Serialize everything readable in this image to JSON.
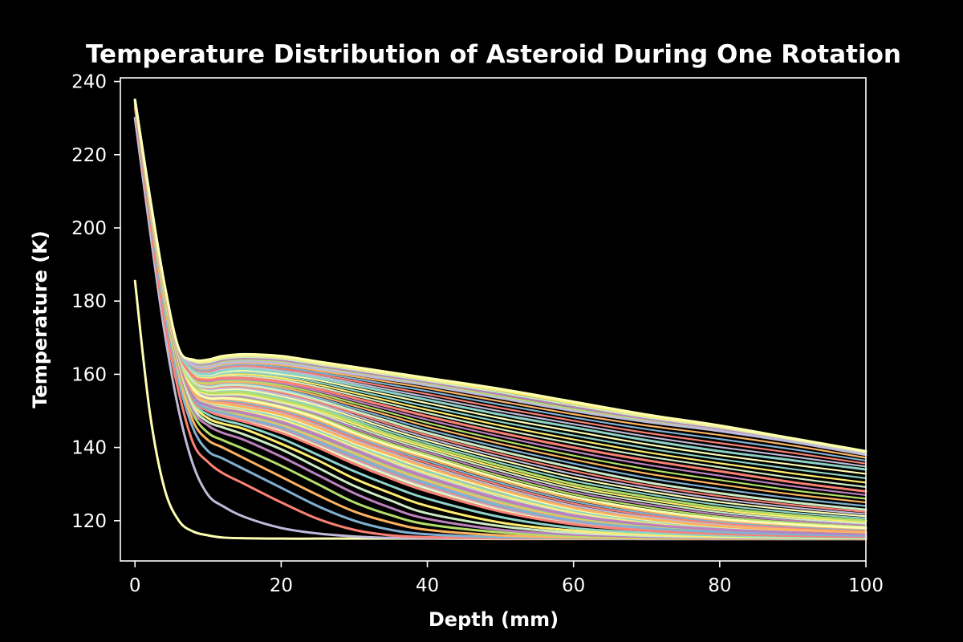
{
  "chart_data": {
    "type": "line",
    "title": "Temperature Distribution of Asteroid During One Rotation",
    "xlabel": "Depth (mm)",
    "ylabel": "Temperature (K)",
    "xlim": [
      -2,
      100
    ],
    "ylim": [
      109,
      241
    ],
    "xticks": [
      0,
      20,
      40,
      60,
      80,
      100
    ],
    "yticks": [
      120,
      140,
      160,
      180,
      200,
      220,
      240
    ],
    "grid": false,
    "legend": "none",
    "palette": [
      "#8dd3c7",
      "#feffb3",
      "#bfbbd9",
      "#fa8174",
      "#81b1d2",
      "#fdb462",
      "#b3de69",
      "#bc82bd",
      "#ccebc4",
      "#ffed6f"
    ],
    "series_x": [
      0,
      2,
      4,
      6,
      8,
      10,
      12,
      15,
      20,
      25,
      30,
      35,
      40,
      50,
      60,
      70,
      80,
      90,
      100
    ],
    "series": [
      {
        "color": "#feffb3",
        "values": [
          185.5,
          150,
          129,
          120,
          117,
          116,
          115.4,
          115.2,
          115.1,
          115.1,
          115.1,
          115.1,
          115.1,
          115,
          115,
          115,
          115,
          115,
          115
        ]
      },
      {
        "color": "#bfbbd9",
        "values": [
          230,
          200,
          172,
          150,
          135,
          127,
          124,
          121,
          118,
          116.5,
          115.7,
          115.3,
          115.2,
          115.1,
          115.1,
          115,
          115,
          115,
          115
        ]
      },
      {
        "color": "#fa8174",
        "values": [
          233,
          203,
          175,
          155,
          141,
          136,
          133,
          130,
          125,
          120.5,
          117.5,
          116,
          115.5,
          115.2,
          115.1,
          115.1,
          115,
          115,
          115
        ]
      },
      {
        "color": "#81b1d2",
        "values": [
          234,
          205,
          178,
          158,
          145,
          139,
          137,
          134,
          129,
          124,
          120,
          117.5,
          116.3,
          115.5,
          115.2,
          115.1,
          115.1,
          115,
          115
        ]
      },
      {
        "color": "#fdb462",
        "values": [
          234.5,
          206,
          180,
          160,
          147,
          142,
          140,
          137,
          132,
          127,
          122.5,
          119.5,
          117.5,
          116,
          115.4,
          115.2,
          115.1,
          115.1,
          115
        ]
      },
      {
        "color": "#b3de69",
        "values": [
          235,
          207,
          181,
          161,
          149,
          144,
          142,
          139.5,
          135,
          130,
          125,
          121.5,
          119,
          116.8,
          115.8,
          115.4,
          115.2,
          115.1,
          115.1
        ]
      },
      {
        "color": "#bc82bd",
        "values": [
          235,
          207.5,
          182,
          162,
          150,
          146,
          144,
          142,
          137.5,
          132.5,
          127.5,
          123.5,
          120.5,
          117.5,
          116.2,
          115.6,
          115.3,
          115.2,
          115.1
        ]
      },
      {
        "color": "#ccebc4",
        "values": [
          235,
          208,
          182.5,
          163,
          151,
          147,
          145.5,
          143.5,
          139.5,
          134.5,
          129.5,
          125.5,
          122,
          118.5,
          116.7,
          115.9,
          115.5,
          115.3,
          115.2
        ]
      },
      {
        "color": "#ffed6f",
        "values": [
          235,
          208,
          183,
          163.5,
          152,
          148,
          146.5,
          145,
          141,
          136.5,
          131.5,
          127.5,
          124,
          119.5,
          117.3,
          116.2,
          115.7,
          115.4,
          115.3
        ]
      },
      {
        "color": "#8dd3c7",
        "values": [
          235,
          208.5,
          183.5,
          164,
          152.5,
          149,
          147.5,
          146,
          142.5,
          138,
          133.5,
          129.5,
          126,
          121,
          118,
          116.7,
          116,
          115.6,
          115.4
        ]
      },
      {
        "color": "#fa8174",
        "values": [
          235,
          208.5,
          183.5,
          164,
          153,
          150,
          148.5,
          147,
          144,
          140,
          135.5,
          131.5,
          128,
          122.5,
          119,
          117.3,
          116.4,
          115.9,
          115.6
        ]
      },
      {
        "color": "#81b1d2",
        "values": [
          235,
          208.5,
          184,
          164.5,
          153.5,
          150.5,
          149.5,
          148,
          145.5,
          141.5,
          137.5,
          133.5,
          130,
          124,
          120,
          118,
          116.9,
          116.3,
          115.9
        ]
      },
      {
        "color": "#bc82bd",
        "values": [
          235,
          208.5,
          184,
          164.5,
          154,
          151.5,
          150.5,
          149.5,
          147,
          143.5,
          139.5,
          135.5,
          132,
          126,
          121.5,
          119,
          117.6,
          116.8,
          116.3
        ]
      },
      {
        "color": "#fdb462",
        "values": [
          235,
          208.5,
          184,
          165,
          155,
          152.5,
          152,
          151,
          149,
          145.5,
          141.5,
          138,
          134.5,
          128.5,
          123.5,
          120.5,
          118.5,
          117.5,
          116.8
        ]
      },
      {
        "color": "#feffb3",
        "values": [
          235,
          208.5,
          184,
          165,
          156,
          153.5,
          153.5,
          153,
          151,
          148,
          144,
          140.5,
          137.5,
          131.5,
          126.5,
          123,
          120.5,
          119,
          118
        ]
      },
      {
        "color": "#b3de69",
        "values": [
          235,
          208.5,
          184,
          165,
          157,
          155,
          155,
          155,
          153,
          150.5,
          147,
          143.5,
          140.5,
          135,
          130,
          126.5,
          123.5,
          121.5,
          120
        ]
      },
      {
        "color": "#ccebc4",
        "values": [
          235,
          208.5,
          184.5,
          165.5,
          158,
          156.5,
          157,
          157,
          155.5,
          153,
          150,
          147,
          144,
          139,
          134.5,
          130.5,
          127.5,
          125,
          123
        ]
      },
      {
        "color": "#fa8174",
        "values": [
          235,
          209,
          184.5,
          166,
          159.5,
          158.5,
          159,
          159,
          158,
          156,
          153.5,
          151,
          148.5,
          144,
          140,
          136.5,
          133.5,
          130.5,
          128
        ]
      },
      {
        "color": "#8dd3c7",
        "values": [
          235,
          209,
          185,
          166.5,
          161,
          160,
          161,
          161.5,
          160.5,
          159,
          157,
          155,
          153,
          149,
          145.5,
          142,
          139,
          136.5,
          134
        ]
      },
      {
        "color": "#bfbbd9",
        "values": [
          235,
          209,
          185,
          167,
          162.5,
          162,
          163,
          163.5,
          163,
          161.5,
          160,
          158.5,
          157,
          153.5,
          150,
          147,
          144.5,
          141.5,
          138
        ]
      },
      {
        "color": "#feffb3",
        "values": [
          235,
          209,
          185,
          167,
          164,
          164,
          165,
          165.5,
          165,
          163.5,
          162,
          160.5,
          159,
          156,
          152.5,
          149,
          146,
          142.5,
          139
        ]
      }
    ]
  }
}
